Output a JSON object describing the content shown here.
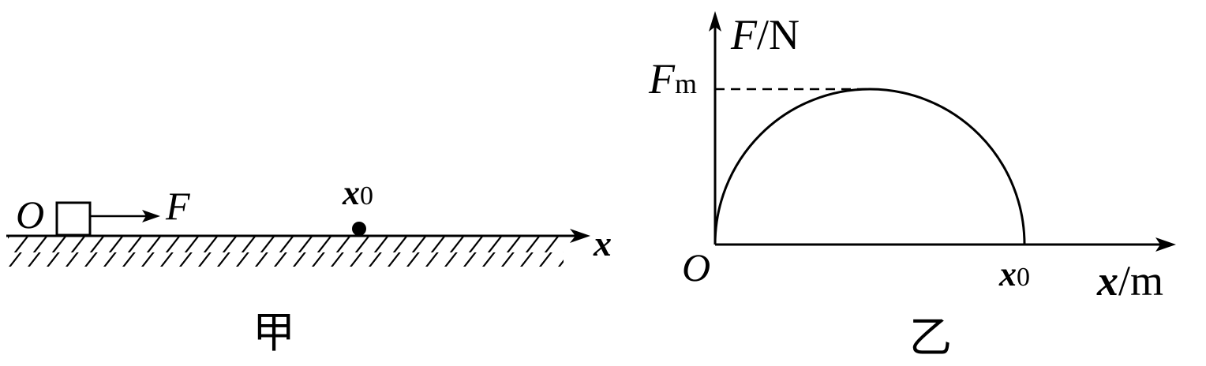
{
  "figure_jia": {
    "origin_label": "O",
    "force_label": "F",
    "point_label_main": "x",
    "point_label_sub": "0",
    "axis_label": "x",
    "caption": "甲"
  },
  "figure_yi": {
    "y_axis_label_var": "F",
    "y_axis_label_unit": "/N",
    "fm_label_main": "F",
    "fm_label_sub": "m",
    "origin_label": "O",
    "x0_label_main": "x",
    "x0_label_sub": "0",
    "x_axis_label_var": "x",
    "x_axis_label_unit": "/m",
    "caption": "乙"
  },
  "chart_data": {
    "type": "line",
    "curve": "quarter-ellipse arc from origin to x0 with maximum Fm",
    "series": [
      {
        "x": [
          "0",
          "x0/2",
          "x0"
        ],
        "values": [
          "0",
          "Fm",
          "0"
        ]
      }
    ]
  }
}
